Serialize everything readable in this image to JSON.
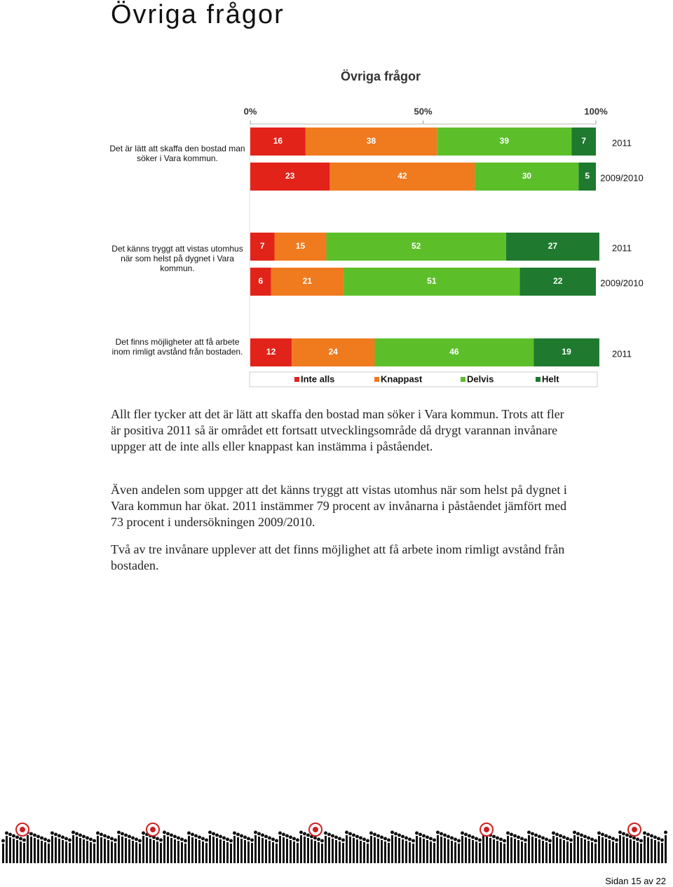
{
  "heading": "Övriga frågor",
  "chart_data": {
    "type": "bar",
    "orientation": "horizontal",
    "stacked": true,
    "title": "Övriga frågor",
    "questions": [
      "Det är lätt att skaffa den bostad man söker i Vara kommun.",
      null,
      "Det känns tryggt att vistas utomhus när som helst på dygnet i Vara kommun.",
      null,
      "Det finns möjligheter att få arbete inom rimligt avstånd från bostaden."
    ],
    "categories": [
      "2011",
      "2009/2010",
      "2011",
      "2009/2010",
      "2011"
    ],
    "xlim": [
      0,
      100
    ],
    "xticks": [
      {
        "value": 0,
        "label": "0%"
      },
      {
        "value": 50,
        "label": "50%"
      },
      {
        "value": 100,
        "label": "100%"
      }
    ],
    "series": [
      {
        "name": "Inte alls",
        "color": "#e2231a",
        "values": [
          16,
          23,
          7,
          6,
          12
        ]
      },
      {
        "name": "Knappast",
        "color": "#f07a1e",
        "values": [
          38,
          42,
          15,
          21,
          24
        ]
      },
      {
        "name": "Delvis",
        "color": "#5cbf2a",
        "values": [
          39,
          30,
          52,
          51,
          46
        ]
      },
      {
        "name": "Helt",
        "color": "#1f7a2f",
        "values": [
          7,
          5,
          27,
          22,
          19
        ]
      }
    ],
    "legend": "bottom"
  },
  "paragraphs": [
    "Allt fler tycker att det är lätt att skaffa den bostad man söker i Vara kommun. Trots att fler är positiva 2011 så är området ett fortsatt utvecklingsområde då drygt varannan invånare uppger att de inte alls eller knappast kan instämma i påståendet.",
    "Även andelen som uppger att det känns tryggt att vistas utomhus när som helst på dygnet i Vara kommun har ökat. 2011 instämmer 79 procent av invånarna i påståendet jämfört med 73 procent i undersökningen 2009/2010.",
    "Två av tre invånare upplever att det finns möjlighet att få arbete inom rimligt avstånd från bostaden."
  ],
  "footer": "Sidan 15 av 22"
}
